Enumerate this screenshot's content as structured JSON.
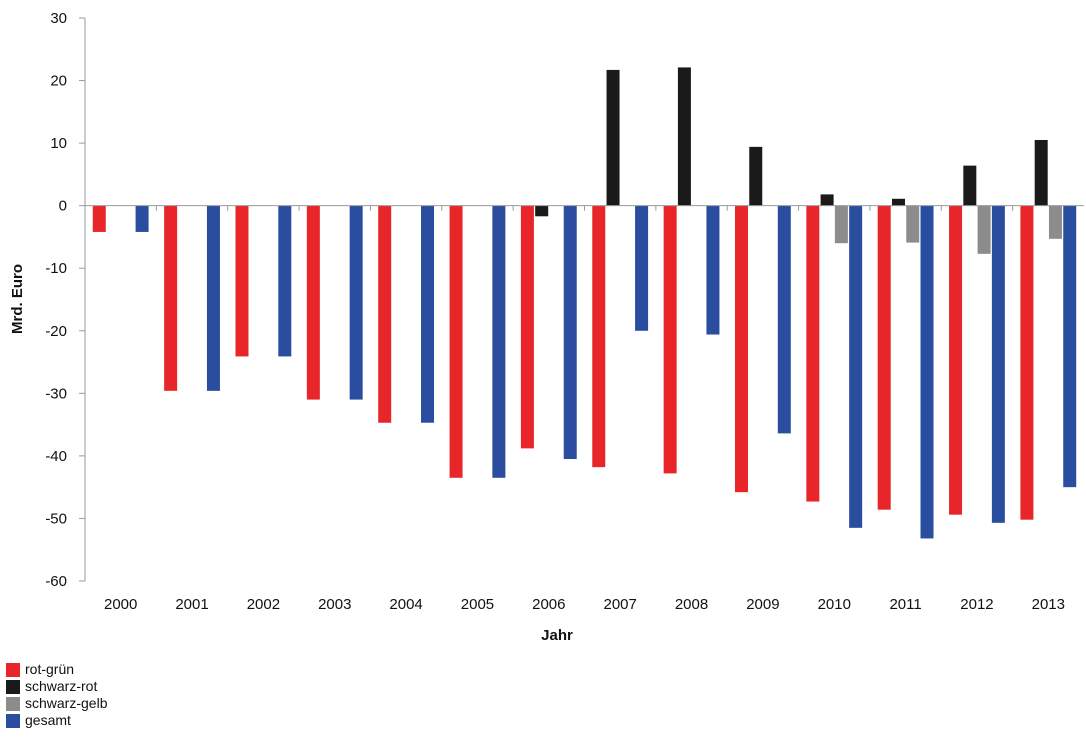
{
  "chart_data": {
    "type": "bar",
    "xlabel": "Jahr",
    "ylabel": "Mrd. Euro",
    "ylim": [
      -60,
      30
    ],
    "yticks": [
      30,
      20,
      10,
      0,
      -10,
      -20,
      -30,
      -40,
      -50,
      -60
    ],
    "categories": [
      "2000",
      "2001",
      "2002",
      "2003",
      "2004",
      "2005",
      "2006",
      "2007",
      "2008",
      "2009",
      "2010",
      "2011",
      "2012",
      "2013"
    ],
    "grid": false,
    "legend_position": "bottom-left",
    "series": [
      {
        "name": "rot-grün",
        "color": "#e8262a",
        "values": [
          -4.2,
          -29.6,
          -24.1,
          -31.0,
          -34.7,
          -43.5,
          -38.8,
          -41.8,
          -42.8,
          -45.8,
          -47.3,
          -48.6,
          -49.4,
          -50.2
        ]
      },
      {
        "name": "schwarz-rot",
        "color": "#1a1a1a",
        "values": [
          0,
          0,
          0,
          0,
          0,
          0,
          -1.7,
          21.7,
          22.1,
          9.4,
          1.8,
          1.1,
          6.4,
          10.5
        ]
      },
      {
        "name": "schwarz-gelb",
        "color": "#8c8c8c",
        "values": [
          0,
          0,
          0,
          0,
          0,
          0,
          0,
          0,
          0,
          0,
          -6.0,
          -5.9,
          -7.7,
          -5.3
        ]
      },
      {
        "name": "gesamt",
        "color": "#2a4d9f",
        "values": [
          -4.2,
          -29.6,
          -24.1,
          -31.0,
          -34.7,
          -43.5,
          -40.5,
          -20.0,
          -20.6,
          -36.4,
          -51.5,
          -53.2,
          -50.7,
          -45.0
        ]
      }
    ]
  }
}
